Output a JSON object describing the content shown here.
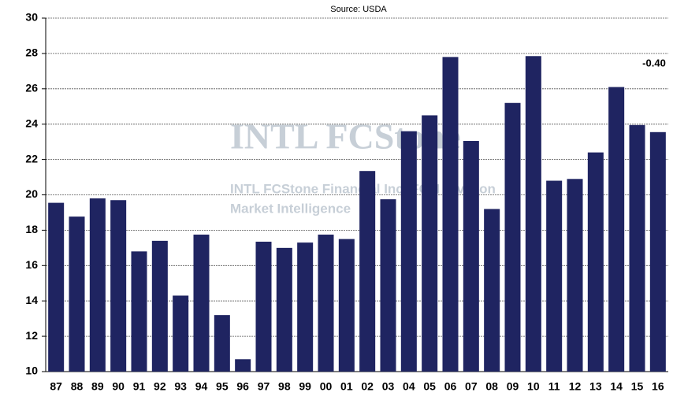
{
  "chart_data": {
    "type": "bar",
    "subtitle": "Source: USDA",
    "categories": [
      "87",
      "88",
      "89",
      "90",
      "91",
      "92",
      "93",
      "94",
      "95",
      "96",
      "97",
      "98",
      "99",
      "00",
      "01",
      "02",
      "03",
      "04",
      "05",
      "06",
      "07",
      "08",
      "09",
      "10",
      "11",
      "12",
      "13",
      "14",
      "15",
      "16"
    ],
    "values": [
      19.55,
      18.77,
      19.8,
      19.7,
      16.8,
      17.4,
      14.3,
      17.75,
      13.2,
      10.7,
      17.35,
      17.0,
      17.3,
      17.75,
      17.5,
      21.35,
      19.75,
      23.6,
      24.5,
      27.8,
      23.05,
      19.2,
      25.2,
      27.85,
      20.8,
      20.9,
      22.4,
      26.1,
      23.95,
      23.55
    ],
    "color": "#1f2461",
    "ylim": [
      10,
      30
    ],
    "yticks": [
      10,
      12,
      14,
      16,
      18,
      20,
      22,
      24,
      26,
      28,
      30
    ],
    "grid": true,
    "annotation": "-0.40",
    "watermark": [
      "INTL FCStone",
      "INTL FCStone Financial Inc. FCM Division",
      "Market Intelligence"
    ]
  }
}
